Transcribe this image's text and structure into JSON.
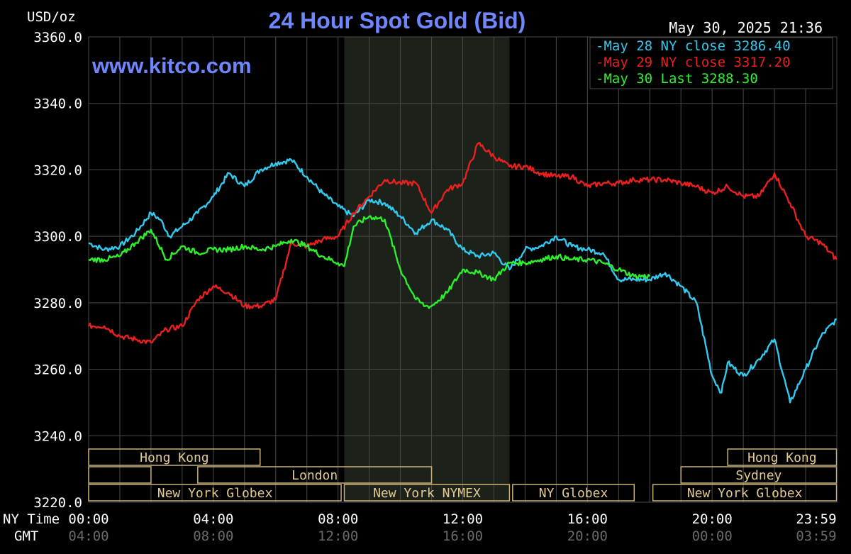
{
  "chart_data": {
    "type": "line",
    "title": "24 Hour Spot Gold (Bid)",
    "watermark": "www.kitco.com",
    "timestamp": "May 30, 2025 21:36",
    "ylabel": "USD/oz",
    "ylim": [
      3220,
      3360
    ],
    "y_ticks": [
      "3360.0",
      "3340.0",
      "3320.0",
      "3300.0",
      "3280.0",
      "3260.0",
      "3240.0",
      "3220.0"
    ],
    "xlim_hours": [
      0,
      24
    ],
    "x_ticks_ny": [
      "00:00",
      "04:00",
      "08:00",
      "12:00",
      "16:00",
      "20:00",
      "23:59"
    ],
    "x_ticks_gmt": [
      "04:00",
      "08:00",
      "12:00",
      "16:00",
      "20:00",
      "00:00",
      "03:59"
    ],
    "x_row_labels": {
      "ny": "NY Time",
      "gmt": "GMT"
    },
    "grid": true,
    "legend_position": "top-right",
    "colors": {
      "background": "#000000",
      "grid": "#4a4a4a",
      "axis_text": "#ffffff",
      "title": "#6f86ff",
      "session_fill": "#1c2119",
      "session_border": "#c9b27a",
      "session_text": "#e2cb93"
    },
    "series": [
      {
        "name": "May 28 NY close 3286.40",
        "color": "#33c9ee",
        "x": [
          0,
          0.5,
          1,
          1.5,
          2,
          2.3,
          2.6,
          3,
          3.5,
          4,
          4.5,
          5,
          5.5,
          6,
          6.5,
          7,
          7.5,
          8,
          8.5,
          9,
          9.5,
          10,
          10.5,
          11,
          11.5,
          12,
          12.5,
          13,
          13.5,
          14,
          14.5,
          15,
          15.5,
          16,
          16.5,
          17,
          17.5,
          18,
          18.5,
          19,
          19.5,
          20,
          20.3,
          20.5,
          21,
          21.5,
          22,
          22.5,
          23,
          23.5,
          23.99
        ],
        "y": [
          3298,
          3296,
          3297,
          3301,
          3307,
          3305,
          3300,
          3303,
          3307,
          3312,
          3319,
          3315,
          3320,
          3322,
          3323,
          3318,
          3313,
          3309,
          3306,
          3311,
          3310,
          3306,
          3301,
          3305,
          3302,
          3296,
          3294,
          3295,
          3290,
          3296,
          3297,
          3300,
          3297,
          3296,
          3295,
          3287,
          3287,
          3287,
          3289,
          3285,
          3280,
          3258,
          3253,
          3262,
          3258,
          3263,
          3269,
          3250,
          3260,
          3270,
          3275
        ]
      },
      {
        "name": "May 29 NY close 3317.20",
        "color": "#e82020",
        "x": [
          0,
          0.5,
          1,
          1.5,
          2,
          2.5,
          3,
          3.5,
          4,
          4.5,
          5,
          5.5,
          6,
          6.5,
          7,
          7.5,
          8,
          8.5,
          9,
          9.5,
          10,
          10.5,
          11,
          11.5,
          12,
          12.5,
          13,
          13.5,
          14,
          14.5,
          15,
          15.5,
          16,
          16.5,
          17,
          17.5,
          18,
          18.5,
          19,
          19.5,
          20,
          20.5,
          21,
          21.5,
          22,
          22.5,
          23,
          23.5,
          23.99
        ],
        "y": [
          3273,
          3273,
          3270,
          3269,
          3268,
          3272,
          3273,
          3281,
          3285,
          3283,
          3279,
          3279,
          3281,
          3298,
          3297,
          3299,
          3300,
          3307,
          3312,
          3317,
          3316,
          3316,
          3307,
          3314,
          3316,
          3328,
          3324,
          3321,
          3321,
          3319,
          3318,
          3318,
          3315,
          3316,
          3316,
          3317,
          3317,
          3317,
          3316,
          3315,
          3313,
          3315,
          3312,
          3312,
          3319,
          3310,
          3300,
          3298,
          3293
        ]
      },
      {
        "name": "May 30 Last 3288.30",
        "color": "#2cf02c",
        "x": [
          0,
          0.5,
          1,
          1.5,
          2,
          2.5,
          3,
          3.5,
          4,
          4.5,
          5,
          5.5,
          6,
          6.5,
          7,
          7.5,
          8,
          8.2,
          8.5,
          9,
          9.5,
          10,
          10.5,
          10.8,
          11,
          11.5,
          12,
          12.5,
          13,
          13.5,
          14,
          14.5,
          15,
          15.5,
          16,
          16.5,
          17,
          17.5,
          18
        ],
        "y": [
          3293,
          3293,
          3294,
          3298,
          3302,
          3293,
          3297,
          3295,
          3296,
          3296,
          3297,
          3296,
          3297,
          3299,
          3297,
          3294,
          3292,
          3291,
          3303,
          3306,
          3305,
          3290,
          3281,
          3279,
          3279,
          3283,
          3290,
          3289,
          3287,
          3292,
          3292,
          3293,
          3294,
          3293,
          3293,
          3292,
          3290,
          3288,
          3288
        ]
      }
    ],
    "sessions": [
      {
        "label": "Hong Kong",
        "row": 1,
        "start": 0,
        "end": 5.5
      },
      {
        "label": "",
        "row": 2,
        "start": 0,
        "end": 2.0
      },
      {
        "label": "London",
        "row": 2,
        "start": 3.5,
        "end": 11.0
      },
      {
        "label": "New York Globex",
        "row": 3,
        "start": 0,
        "end": 8.1
      },
      {
        "label": "New York NYMEX",
        "row": 3,
        "start": 8.2,
        "end": 13.5
      },
      {
        "label": "NY Globex",
        "row": 3,
        "start": 13.6,
        "end": 17.5
      },
      {
        "label": "Hong Kong",
        "row": 1,
        "start": 20.5,
        "end": 23.99
      },
      {
        "label": "Sydney",
        "row": 2,
        "start": 19.0,
        "end": 23.99
      },
      {
        "label": "New York Globex",
        "row": 3,
        "start": 18.1,
        "end": 23.99
      }
    ],
    "nymex_shade_hours": [
      8.2,
      13.5
    ]
  }
}
